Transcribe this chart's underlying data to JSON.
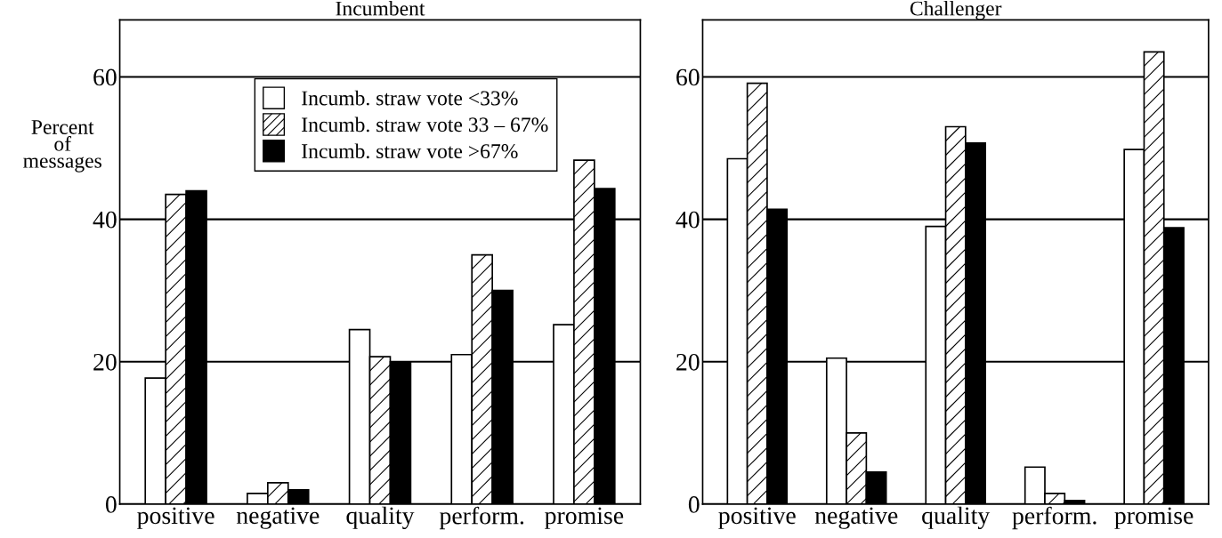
{
  "chart_data": [
    {
      "type": "bar",
      "title": "Incumbent",
      "ylabel": "Percent\nof\nmessages",
      "categories": [
        "positive",
        "negative",
        "quality",
        "perform.",
        "promise"
      ],
      "ylim": [
        0,
        68
      ],
      "yticks": [
        0,
        20,
        40,
        60
      ],
      "grid": "y",
      "legend": "top right",
      "series": [
        {
          "name": "Incumb. straw vote <33%",
          "color": "#ffffff",
          "values": [
            17.7,
            1.5,
            24.5,
            21,
            25.2
          ]
        },
        {
          "name": "Incumb. straw vote 33 – 67%",
          "color": "#ffffff",
          "values": [
            43.5,
            3,
            20.7,
            35,
            48.3
          ]
        },
        {
          "name": "Incumb. straw vote >67%",
          "color": "#000000",
          "values": [
            44,
            2,
            20,
            30,
            44.3
          ]
        }
      ]
    },
    {
      "type": "bar",
      "title": "Challenger",
      "categories": [
        "positive",
        "negative",
        "quality",
        "perform.",
        "promise"
      ],
      "ylim": [
        0,
        68
      ],
      "yticks": [
        0,
        20,
        40,
        60
      ],
      "grid": "y",
      "series": [
        {
          "color": "#ffffff",
          "values": [
            48.5,
            20.5,
            39,
            5.2,
            49.8
          ]
        },
        {
          "color": "#ffffff",
          "values": [
            59.1,
            10,
            53,
            1.5,
            63.5
          ]
        },
        {
          "color": "#000000",
          "values": [
            41.4,
            4.5,
            50.7,
            0.5,
            38.8
          ]
        }
      ]
    }
  ]
}
